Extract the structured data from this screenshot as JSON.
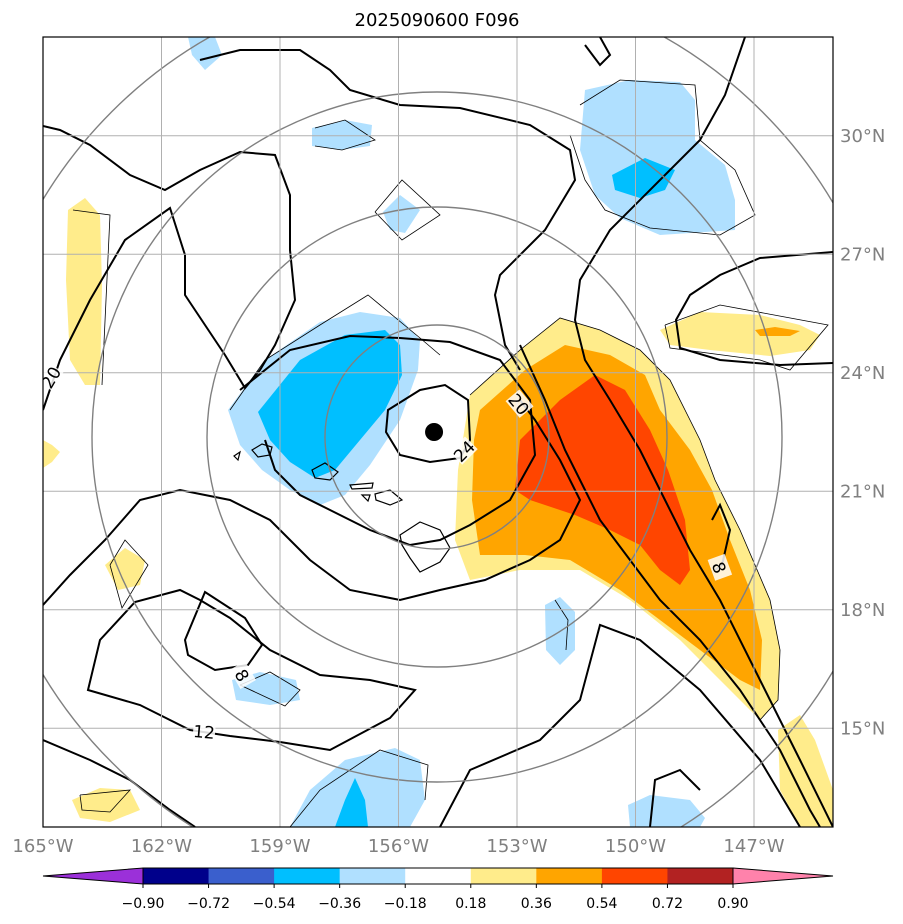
{
  "chart_data": {
    "type": "heatmap",
    "title": "2025090600 F096",
    "x_ticks": [
      "165°W",
      "162°W",
      "159°W",
      "156°W",
      "153°W",
      "150°W",
      "147°W"
    ],
    "x_tick_values": [
      -165,
      -162,
      -159,
      -156,
      -153,
      -150,
      -147
    ],
    "y_ticks": [
      "15°N",
      "18°N",
      "21°N",
      "24°N",
      "27°N",
      "30°N"
    ],
    "y_tick_values": [
      15,
      18,
      21,
      24,
      27,
      30
    ],
    "xlim": [
      -165,
      -145
    ],
    "ylim": [
      12.5,
      32.5
    ],
    "grid": true,
    "colorbar": {
      "orientation": "horizontal",
      "levels": [
        -0.9,
        -0.72,
        -0.54,
        -0.36,
        -0.18,
        0.18,
        0.36,
        0.54,
        0.72,
        0.9
      ],
      "tick_labels": [
        "−0.90",
        "−0.72",
        "−0.54",
        "−0.36",
        "−0.18",
        "0.18",
        "0.36",
        "0.54",
        "0.72",
        "0.90"
      ],
      "colors": [
        "#9b30d9",
        "#00008b",
        "#3a5fcd",
        "#00bfff",
        "#b0e0ff",
        "#ffffff",
        "#ffec8b",
        "#ffa500",
        "#ff4500",
        "#b22222",
        "#ff82ab"
      ]
    },
    "contour_labels": [
      "20",
      "20",
      "24",
      "12",
      "8",
      "8"
    ],
    "center_marker": {
      "lon": -155.1,
      "lat": 22.5
    }
  }
}
